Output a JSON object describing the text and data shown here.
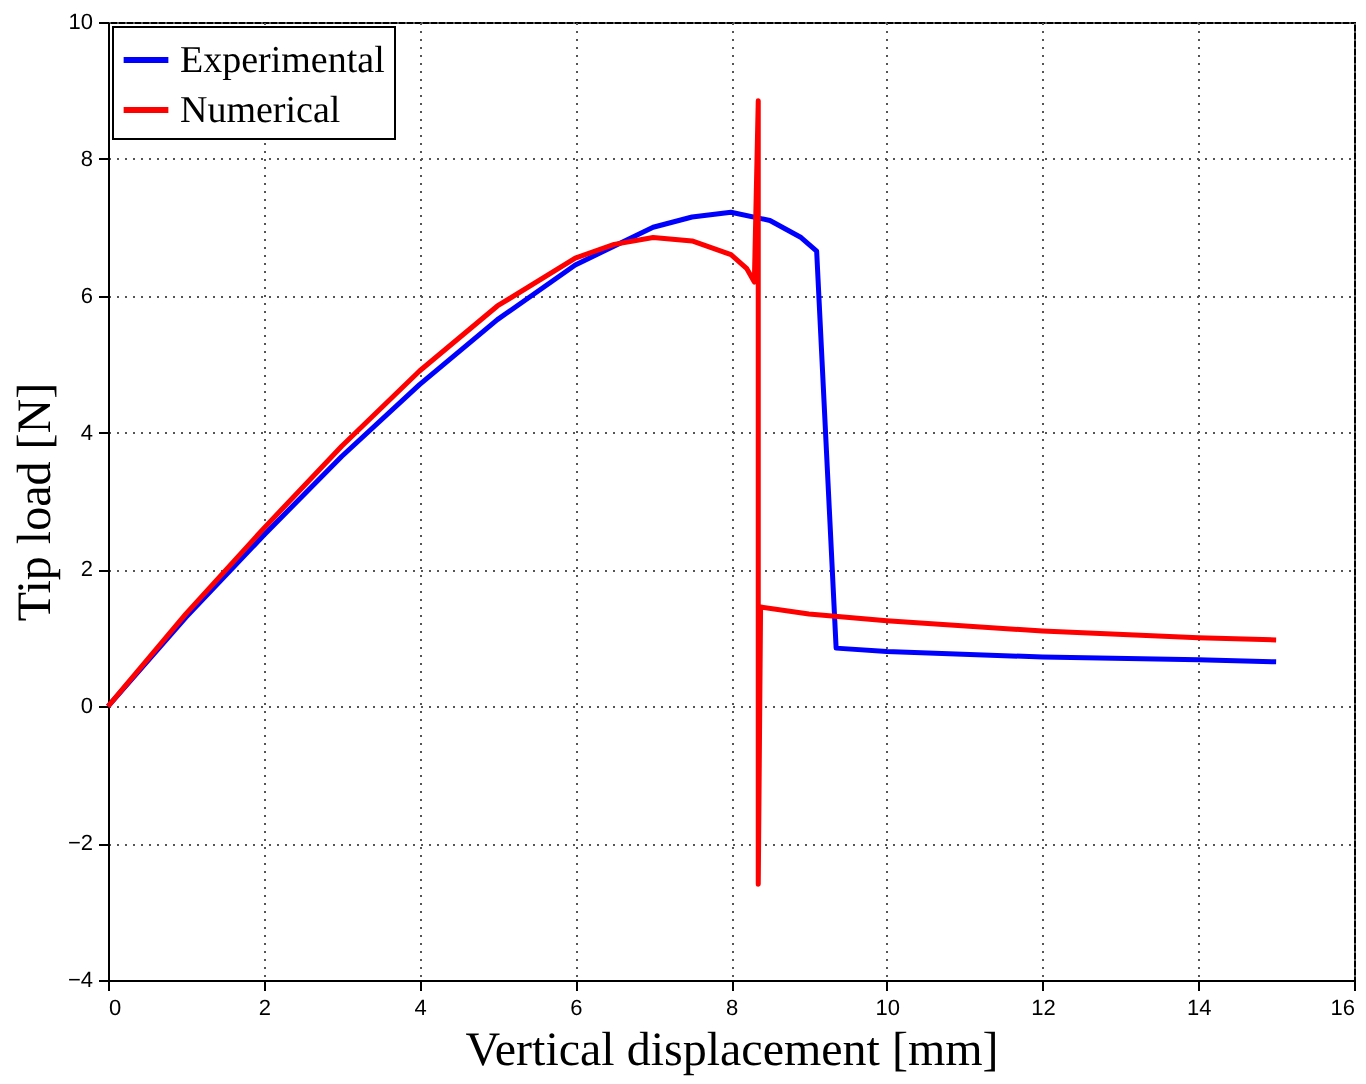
{
  "chart_data": {
    "type": "line",
    "xlabel": "Vertical displacement [mm]",
    "ylabel": "Tip load [N]",
    "xlim": [
      0,
      16
    ],
    "xticks": [
      0,
      2,
      4,
      6,
      8,
      10,
      12,
      14,
      16
    ],
    "ylim": [
      -4,
      10
    ],
    "yticks": [
      -4,
      -2,
      0,
      2,
      4,
      6,
      8,
      10
    ],
    "grid": true,
    "legend": "top left",
    "line_style": "solid",
    "marker": "none",
    "series": [
      {
        "name": "Experimental",
        "color": "#0000ff",
        "x": [
          0,
          1,
          2,
          3,
          4,
          5,
          6,
          7,
          7.5,
          8,
          8.5,
          8.9,
          9.1,
          9.35,
          10,
          12,
          14,
          15
        ],
        "values": [
          0,
          1.3,
          2.5,
          3.65,
          4.7,
          5.65,
          6.45,
          7.0,
          7.15,
          7.22,
          7.1,
          6.85,
          6.65,
          0.85,
          0.8,
          0.72,
          0.68,
          0.65
        ]
      },
      {
        "name": "Numerical",
        "color": "#ff0000",
        "x": [
          0,
          1,
          2,
          3,
          4,
          5,
          6,
          6.5,
          7,
          7.5,
          8,
          8.2,
          8.3,
          8.35,
          8.35,
          8.38,
          9,
          10,
          12,
          14,
          15
        ],
        "values": [
          0,
          1.35,
          2.6,
          3.8,
          4.9,
          5.85,
          6.55,
          6.75,
          6.85,
          6.8,
          6.6,
          6.4,
          6.2,
          8.85,
          -2.6,
          1.45,
          1.35,
          1.25,
          1.1,
          1.0,
          0.97
        ]
      }
    ]
  }
}
